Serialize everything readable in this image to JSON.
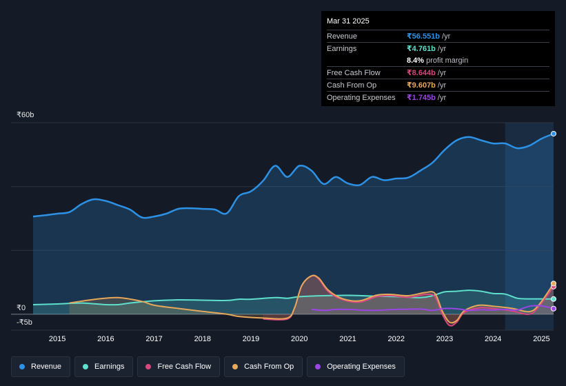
{
  "chart_data": {
    "type": "area",
    "y_unit_prefix": "₹",
    "y_axis_labels": [
      "₹60b",
      "₹0",
      "-₹5b"
    ],
    "ylim": [
      -5,
      60
    ],
    "xlim": [
      2014.5,
      2025.25
    ],
    "x_tick_labels": [
      "2015",
      "2016",
      "2017",
      "2018",
      "2019",
      "2020",
      "2021",
      "2022",
      "2023",
      "2024",
      "2025"
    ],
    "x_tick_values": [
      2015,
      2016,
      2017,
      2018,
      2019,
      2020,
      2021,
      2022,
      2023,
      2024,
      2025
    ],
    "highlight_from": 2024.25,
    "series": [
      {
        "name": "Revenue",
        "color": "#2d91e5",
        "fill": true,
        "points": [
          [
            2014.5,
            30.6
          ],
          [
            2014.75,
            31.0
          ],
          [
            2015.0,
            31.5
          ],
          [
            2015.25,
            32.0
          ],
          [
            2015.5,
            34.5
          ],
          [
            2015.75,
            36.0
          ],
          [
            2016.0,
            35.5
          ],
          [
            2016.25,
            34.2
          ],
          [
            2016.5,
            32.8
          ],
          [
            2016.75,
            30.3
          ],
          [
            2017.0,
            30.6
          ],
          [
            2017.25,
            31.5
          ],
          [
            2017.5,
            33.0
          ],
          [
            2017.75,
            33.2
          ],
          [
            2018.0,
            33.0
          ],
          [
            2018.25,
            32.8
          ],
          [
            2018.5,
            31.6
          ],
          [
            2018.75,
            37.0
          ],
          [
            2019.0,
            38.5
          ],
          [
            2019.25,
            41.8
          ],
          [
            2019.5,
            46.5
          ],
          [
            2019.75,
            43.0
          ],
          [
            2020.0,
            46.5
          ],
          [
            2020.25,
            45.0
          ],
          [
            2020.5,
            40.8
          ],
          [
            2020.75,
            43.0
          ],
          [
            2021.0,
            41.0
          ],
          [
            2021.25,
            40.5
          ],
          [
            2021.5,
            43.0
          ],
          [
            2021.75,
            42.0
          ],
          [
            2022.0,
            42.5
          ],
          [
            2022.25,
            42.8
          ],
          [
            2022.5,
            45.0
          ],
          [
            2022.75,
            47.5
          ],
          [
            2023.0,
            51.5
          ],
          [
            2023.25,
            54.5
          ],
          [
            2023.5,
            55.5
          ],
          [
            2023.75,
            54.5
          ],
          [
            2024.0,
            53.5
          ],
          [
            2024.25,
            53.5
          ],
          [
            2024.5,
            52.0
          ],
          [
            2024.75,
            52.8
          ],
          [
            2025.0,
            55.0
          ],
          [
            2025.25,
            56.551
          ]
        ]
      },
      {
        "name": "Earnings",
        "color": "#5ee0cd",
        "fill": true,
        "points": [
          [
            2014.5,
            3.0
          ],
          [
            2015.0,
            3.2
          ],
          [
            2015.5,
            3.5
          ],
          [
            2016.0,
            3.0
          ],
          [
            2016.25,
            3.0
          ],
          [
            2016.5,
            3.5
          ],
          [
            2017.0,
            4.2
          ],
          [
            2017.5,
            4.5
          ],
          [
            2018.0,
            4.4
          ],
          [
            2018.5,
            4.3
          ],
          [
            2018.75,
            4.7
          ],
          [
            2019.0,
            4.7
          ],
          [
            2019.5,
            5.2
          ],
          [
            2019.75,
            5.0
          ],
          [
            2020.0,
            5.5
          ],
          [
            2020.5,
            5.8
          ],
          [
            2021.0,
            5.9
          ],
          [
            2021.5,
            5.7
          ],
          [
            2022.0,
            5.5
          ],
          [
            2022.5,
            5.2
          ],
          [
            2022.75,
            5.8
          ],
          [
            2023.0,
            7.0
          ],
          [
            2023.25,
            7.2
          ],
          [
            2023.5,
            7.5
          ],
          [
            2023.75,
            7.2
          ],
          [
            2024.0,
            6.5
          ],
          [
            2024.25,
            6.3
          ],
          [
            2024.5,
            5.0
          ],
          [
            2024.75,
            4.8
          ],
          [
            2025.0,
            4.8
          ],
          [
            2025.25,
            4.761
          ]
        ]
      },
      {
        "name": "Free Cash Flow",
        "color": "#d6487e",
        "fill": true,
        "points": [
          [
            2019.25,
            -1.5
          ],
          [
            2019.75,
            -1.5
          ],
          [
            2019.9,
            2.0
          ],
          [
            2020.05,
            9.0
          ],
          [
            2020.25,
            12.0
          ],
          [
            2020.4,
            11.0
          ],
          [
            2020.6,
            7.0
          ],
          [
            2020.9,
            4.5
          ],
          [
            2021.25,
            3.8
          ],
          [
            2021.6,
            5.5
          ],
          [
            2021.9,
            5.8
          ],
          [
            2022.25,
            5.3
          ],
          [
            2022.6,
            6.2
          ],
          [
            2022.8,
            5.5
          ],
          [
            2022.95,
            0.0
          ],
          [
            2023.1,
            -3.5
          ],
          [
            2023.25,
            -2.5
          ],
          [
            2023.4,
            0.5
          ],
          [
            2023.7,
            2.0
          ],
          [
            2024.0,
            1.8
          ],
          [
            2024.4,
            1.0
          ],
          [
            2024.75,
            0.0
          ],
          [
            2024.95,
            2.5
          ],
          [
            2025.25,
            8.644
          ]
        ]
      },
      {
        "name": "Cash From Op",
        "color": "#e8a85a",
        "fill": true,
        "points": [
          [
            2015.25,
            3.5
          ],
          [
            2015.75,
            4.6
          ],
          [
            2016.25,
            5.2
          ],
          [
            2016.75,
            4.0
          ],
          [
            2017.0,
            2.8
          ],
          [
            2017.5,
            1.8
          ],
          [
            2018.0,
            0.9
          ],
          [
            2018.5,
            0.0
          ],
          [
            2018.75,
            -0.7
          ],
          [
            2019.25,
            -1.2
          ],
          [
            2019.75,
            -1.2
          ],
          [
            2019.9,
            2.0
          ],
          [
            2020.05,
            9.0
          ],
          [
            2020.25,
            12.0
          ],
          [
            2020.4,
            11.3
          ],
          [
            2020.6,
            7.5
          ],
          [
            2020.9,
            4.8
          ],
          [
            2021.25,
            4.2
          ],
          [
            2021.6,
            6.0
          ],
          [
            2021.9,
            6.2
          ],
          [
            2022.25,
            5.8
          ],
          [
            2022.6,
            6.8
          ],
          [
            2022.8,
            6.5
          ],
          [
            2022.95,
            1.0
          ],
          [
            2023.1,
            -2.5
          ],
          [
            2023.25,
            -2.0
          ],
          [
            2023.4,
            1.0
          ],
          [
            2023.7,
            2.8
          ],
          [
            2024.0,
            2.5
          ],
          [
            2024.4,
            1.8
          ],
          [
            2024.75,
            0.8
          ],
          [
            2024.95,
            3.0
          ],
          [
            2025.25,
            9.607
          ]
        ]
      },
      {
        "name": "Operating Expenses",
        "color": "#9b45e6",
        "fill": false,
        "points": [
          [
            2020.25,
            1.5
          ],
          [
            2020.5,
            1.2
          ],
          [
            2020.75,
            1.5
          ],
          [
            2021.0,
            1.5
          ],
          [
            2021.5,
            1.2
          ],
          [
            2022.0,
            1.5
          ],
          [
            2022.5,
            1.6
          ],
          [
            2022.75,
            1.2
          ],
          [
            2023.0,
            1.8
          ],
          [
            2023.25,
            1.7
          ],
          [
            2023.5,
            1.2
          ],
          [
            2023.75,
            1.4
          ],
          [
            2024.0,
            1.3
          ],
          [
            2024.25,
            1.5
          ],
          [
            2024.5,
            1.3
          ],
          [
            2024.75,
            2.5
          ],
          [
            2025.0,
            2.6
          ],
          [
            2025.25,
            1.745
          ]
        ]
      }
    ]
  },
  "tooltip": {
    "date": "Mar 31 2025",
    "rows": [
      {
        "label": "Revenue",
        "value": "₹56.551b",
        "unit": "/yr",
        "color": "#2d91e5"
      },
      {
        "label": "Earnings",
        "value": "₹4.761b",
        "unit": "/yr",
        "color": "#5ee0cd"
      },
      {
        "label": "",
        "value": "8.4%",
        "unit": "profit margin",
        "color": "#ffffff"
      },
      {
        "label": "Free Cash Flow",
        "value": "₹8.644b",
        "unit": "/yr",
        "color": "#d6487e"
      },
      {
        "label": "Cash From Op",
        "value": "₹9.607b",
        "unit": "/yr",
        "color": "#e8a85a"
      },
      {
        "label": "Operating Expenses",
        "value": "₹1.745b",
        "unit": "/yr",
        "color": "#9b45e6"
      }
    ]
  },
  "legend": [
    {
      "label": "Revenue",
      "color": "#2d91e5"
    },
    {
      "label": "Earnings",
      "color": "#5ee0cd"
    },
    {
      "label": "Free Cash Flow",
      "color": "#d6487e"
    },
    {
      "label": "Cash From Op",
      "color": "#e8a85a"
    },
    {
      "label": "Operating Expenses",
      "color": "#9b45e6"
    }
  ]
}
